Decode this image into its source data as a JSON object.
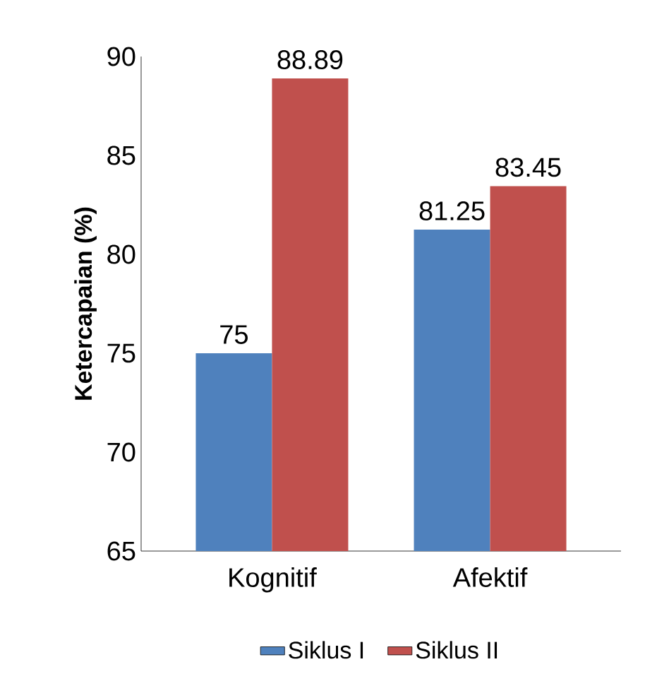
{
  "chart_data": {
    "type": "bar",
    "ylabel": "Ketercapaian (%)",
    "categories": [
      "Kognitif",
      "Afektif"
    ],
    "series": [
      {
        "name": "Siklus I",
        "color": "#4f81bd",
        "values": [
          75,
          81.25
        ]
      },
      {
        "name": "Siklus II",
        "color": "#c0504d",
        "values": [
          88.89,
          83.45
        ]
      }
    ],
    "ylim": [
      65,
      90
    ],
    "yticks": [
      65,
      70,
      75,
      80,
      85,
      90
    ],
    "data_labels": true,
    "legend": "bottom"
  }
}
